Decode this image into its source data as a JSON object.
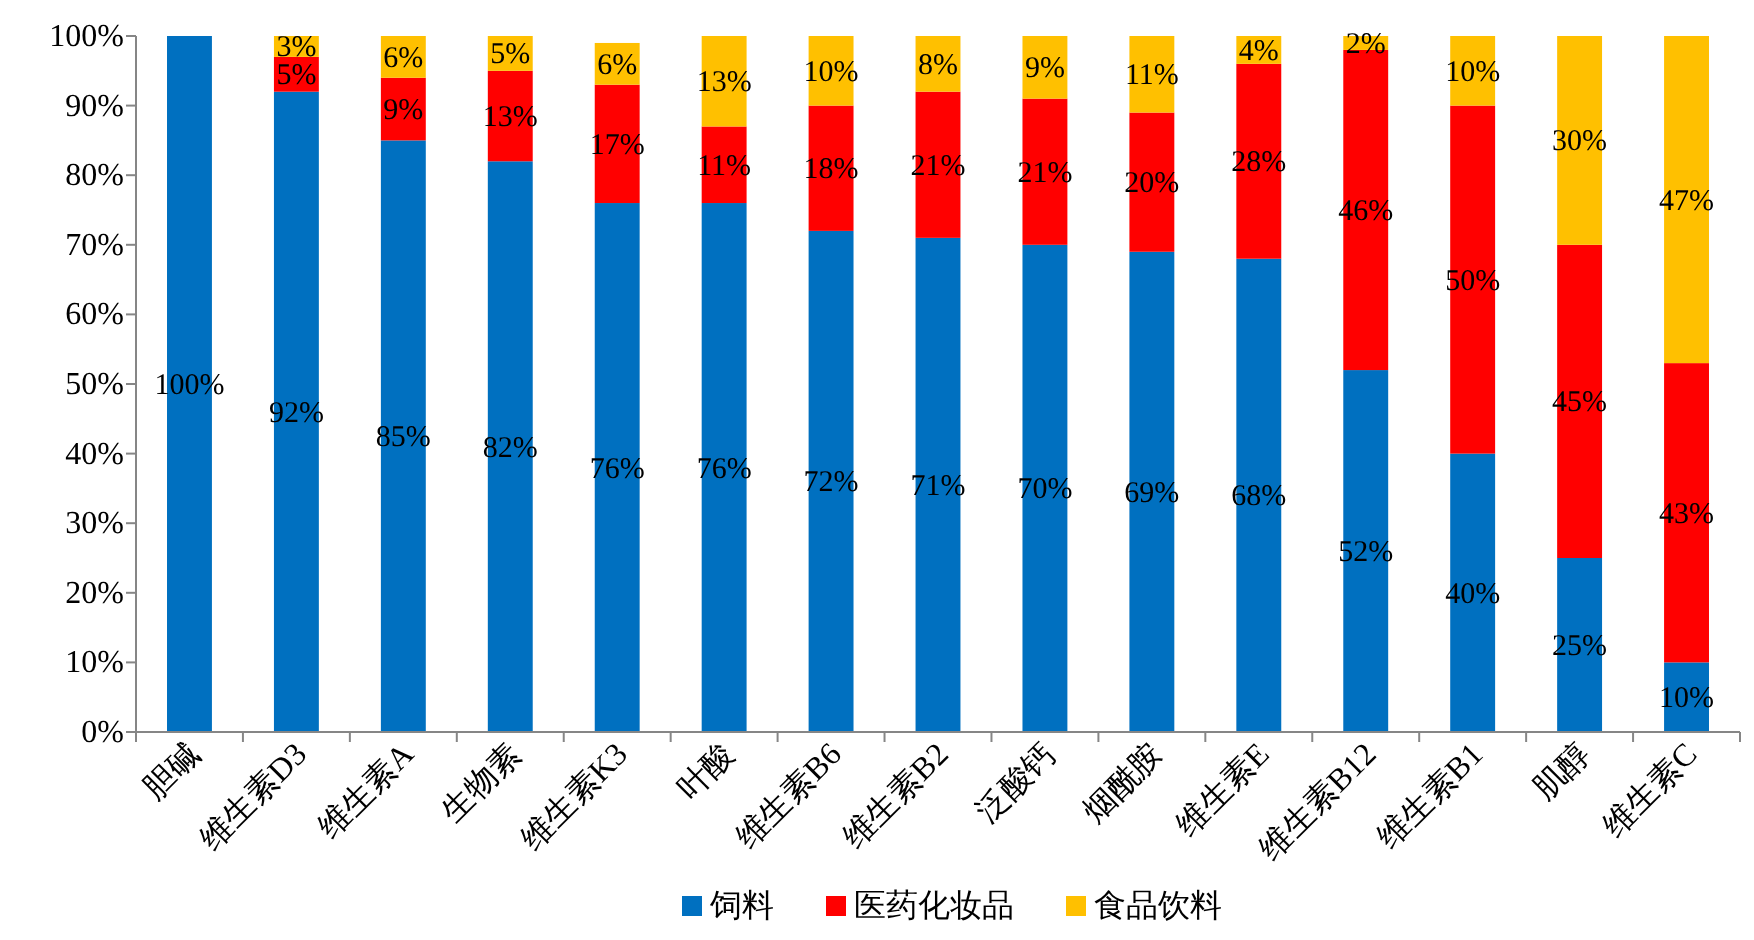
{
  "chart_data": {
    "type": "bar",
    "stacked": true,
    "legend": "bottom",
    "grid": false,
    "categories": [
      "胆碱",
      "维生素D3",
      "维生素A",
      "生物素",
      "维生素K3",
      "叶酸",
      "维生素B6",
      "维生素B2",
      "泛酸钙",
      "烟酰胺",
      "维生素E",
      "维生素B12",
      "维生素B1",
      "肌醇",
      "维生素C"
    ],
    "ylim": [
      0,
      100
    ],
    "yticks": [
      {
        "value": 0,
        "label": "0%"
      },
      {
        "value": 10,
        "label": "10%"
      },
      {
        "value": 20,
        "label": "20%"
      },
      {
        "value": 30,
        "label": "30%"
      },
      {
        "value": 40,
        "label": "40%"
      },
      {
        "value": 50,
        "label": "50%"
      },
      {
        "value": 60,
        "label": "60%"
      },
      {
        "value": 70,
        "label": "70%"
      },
      {
        "value": 80,
        "label": "80%"
      },
      {
        "value": 90,
        "label": "90%"
      },
      {
        "value": 100,
        "label": "100%"
      }
    ],
    "series": [
      {
        "name": "饲料",
        "color": "#0070c0",
        "values": [
          100,
          92,
          85,
          82,
          76,
          76,
          72,
          71,
          70,
          69,
          68,
          52,
          40,
          25,
          10
        ],
        "value_labels": [
          "100%",
          "92%",
          "85%",
          "82%",
          "76%",
          "76%",
          "72%",
          "71%",
          "70%",
          "69%",
          "68%",
          "52%",
          "40%",
          "25%",
          "10%"
        ]
      },
      {
        "name": "医药化妆品",
        "color": "#ff0000",
        "values": [
          null,
          5,
          9,
          13,
          17,
          11,
          18,
          21,
          21,
          20,
          28,
          46,
          50,
          45,
          43
        ],
        "value_labels": [
          null,
          "5%",
          "9%",
          "13%",
          "17%",
          "11%",
          "18%",
          "21%",
          "21%",
          "20%",
          "28%",
          "46%",
          "50%",
          "45%",
          "43%"
        ]
      },
      {
        "name": "食品饮料",
        "color": "#ffc000",
        "values": [
          null,
          3,
          6,
          5,
          6,
          13,
          10,
          8,
          9,
          11,
          4,
          2,
          10,
          30,
          47
        ],
        "value_labels": [
          null,
          "3%",
          "6%",
          "5%",
          "6%",
          "13%",
          "10%",
          "8%",
          "9%",
          "11%",
          "4%",
          "2%",
          "10%",
          "30%",
          "47%"
        ]
      }
    ]
  }
}
